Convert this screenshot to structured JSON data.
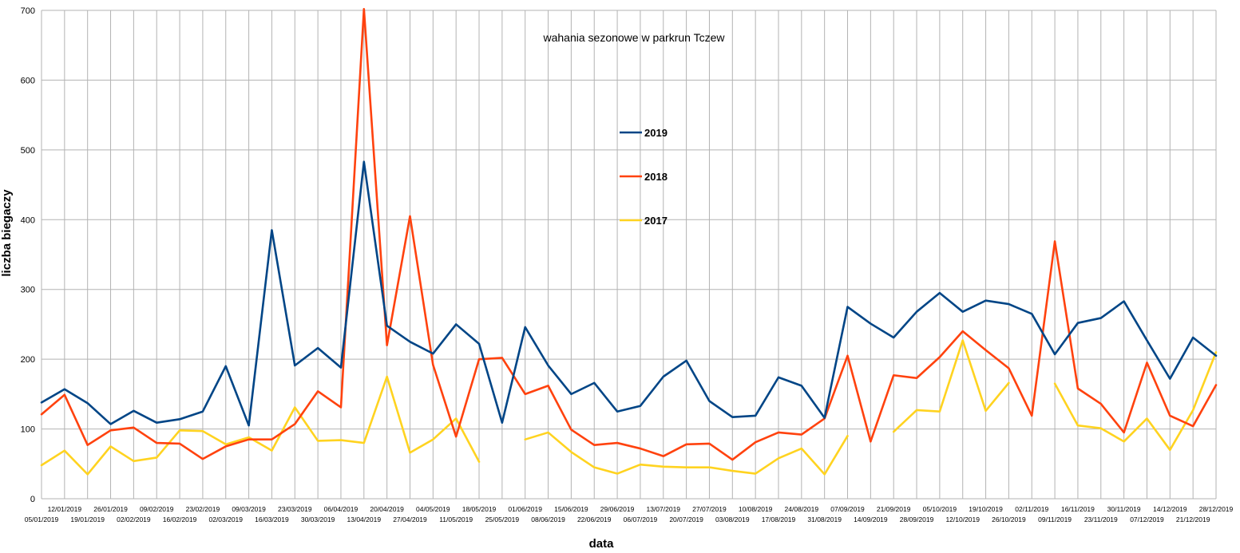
{
  "chart_data": {
    "type": "line",
    "title": "wahania sezonowe w parkrun Tczew",
    "xlabel": "data",
    "ylabel": "liczba biegaczy",
    "ylim": [
      0,
      700
    ],
    "yticks": [
      0,
      100,
      200,
      300,
      400,
      500,
      600,
      700
    ],
    "grid": true,
    "legend_position": "center-top",
    "categories": [
      "05/01/2019",
      "12/01/2019",
      "19/01/2019",
      "26/01/2019",
      "02/02/2019",
      "09/02/2019",
      "16/02/2019",
      "23/02/2019",
      "02/03/2019",
      "09/03/2019",
      "16/03/2019",
      "23/03/2019",
      "30/03/2019",
      "06/04/2019",
      "13/04/2019",
      "20/04/2019",
      "27/04/2019",
      "04/05/2019",
      "11/05/2019",
      "18/05/2019",
      "25/05/2019",
      "01/06/2019",
      "08/06/2019",
      "15/06/2019",
      "22/06/2019",
      "29/06/2019",
      "06/07/2019",
      "13/07/2019",
      "20/07/2019",
      "27/07/2019",
      "03/08/2019",
      "10/08/2019",
      "17/08/2019",
      "24/08/2019",
      "31/08/2019",
      "07/09/2019",
      "14/09/2019",
      "21/09/2019",
      "28/09/2019",
      "05/10/2019",
      "12/10/2019",
      "19/10/2019",
      "26/10/2019",
      "02/11/2019",
      "09/11/2019",
      "16/11/2019",
      "23/11/2019",
      "30/11/2019",
      "07/12/2019",
      "14/12/2019",
      "21/12/2019",
      "28/12/2019"
    ],
    "series": [
      {
        "name": "2019",
        "color": "#004586",
        "values": [
          138,
          157,
          137,
          107,
          126,
          109,
          114,
          125,
          190,
          105,
          385,
          191,
          216,
          188,
          483,
          248,
          225,
          208,
          250,
          222,
          109,
          246,
          191,
          150,
          166,
          125,
          133,
          175,
          198,
          140,
          117,
          119,
          174,
          162,
          116,
          275,
          251,
          231,
          268,
          295,
          268,
          284,
          279,
          265,
          207,
          252,
          259,
          283,
          227,
          172,
          231,
          205
        ]
      },
      {
        "name": "2018",
        "color": "#ff420e",
        "values": [
          121,
          149,
          77,
          98,
          102,
          80,
          79,
          57,
          75,
          85,
          85,
          107,
          154,
          131,
          702,
          220,
          405,
          192,
          89,
          200,
          202,
          150,
          162,
          99,
          77,
          80,
          72,
          61,
          78,
          79,
          56,
          81,
          95,
          92,
          115,
          205,
          82,
          177,
          173,
          203,
          240,
          213,
          187,
          119,
          369,
          158,
          136,
          95,
          195,
          119,
          104,
          163
        ]
      },
      {
        "name": "2017",
        "color": "#ffd320",
        "values": [
          48,
          69,
          35,
          75,
          54,
          59,
          98,
          97,
          78,
          88,
          69,
          131,
          83,
          84,
          80,
          175,
          66,
          85,
          115,
          53,
          null,
          85,
          95,
          67,
          45,
          36,
          49,
          46,
          45,
          45,
          40,
          36,
          58,
          72,
          35,
          90,
          null,
          96,
          127,
          125,
          227,
          126,
          166,
          null,
          165,
          105,
          101,
          82,
          115,
          70,
          127,
          210
        ]
      }
    ]
  }
}
